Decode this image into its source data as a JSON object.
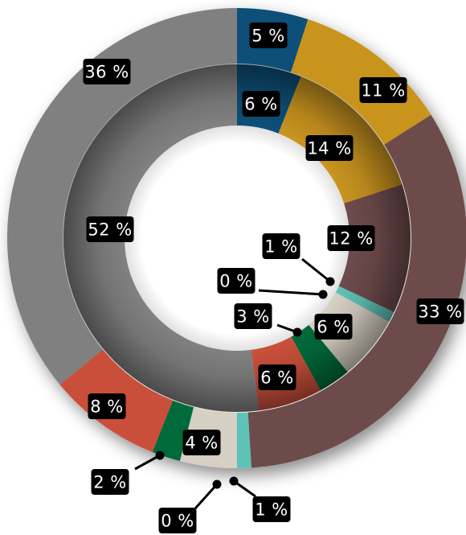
{
  "chart_data": {
    "type": "pie",
    "subtype": "nested-donut",
    "title": "",
    "legend": "none",
    "grid": false,
    "colors": [
      "#0d4f78",
      "#c9941f",
      "#6e4b4c",
      "#5fc2b6",
      "#d6cfc4",
      "#006b3a",
      "#c9503b",
      "#808080"
    ],
    "rings": [
      {
        "ring": "outer",
        "values": [
          5,
          11,
          33,
          1,
          4,
          2,
          8,
          36
        ],
        "labels": [
          "5 %",
          "11 %",
          "33 %",
          "1 %",
          "4 %",
          "2 %",
          "8 %",
          "36 %"
        ]
      },
      {
        "ring": "inner",
        "values": [
          6,
          14,
          12,
          1,
          6,
          3,
          6,
          52
        ],
        "labels": [
          "6 %",
          "14 %",
          "12 %",
          "1 %",
          "6 %",
          "3 %",
          "6 %",
          "52 %"
        ]
      }
    ],
    "extra_labels": [
      "0 %",
      "0 %"
    ]
  }
}
